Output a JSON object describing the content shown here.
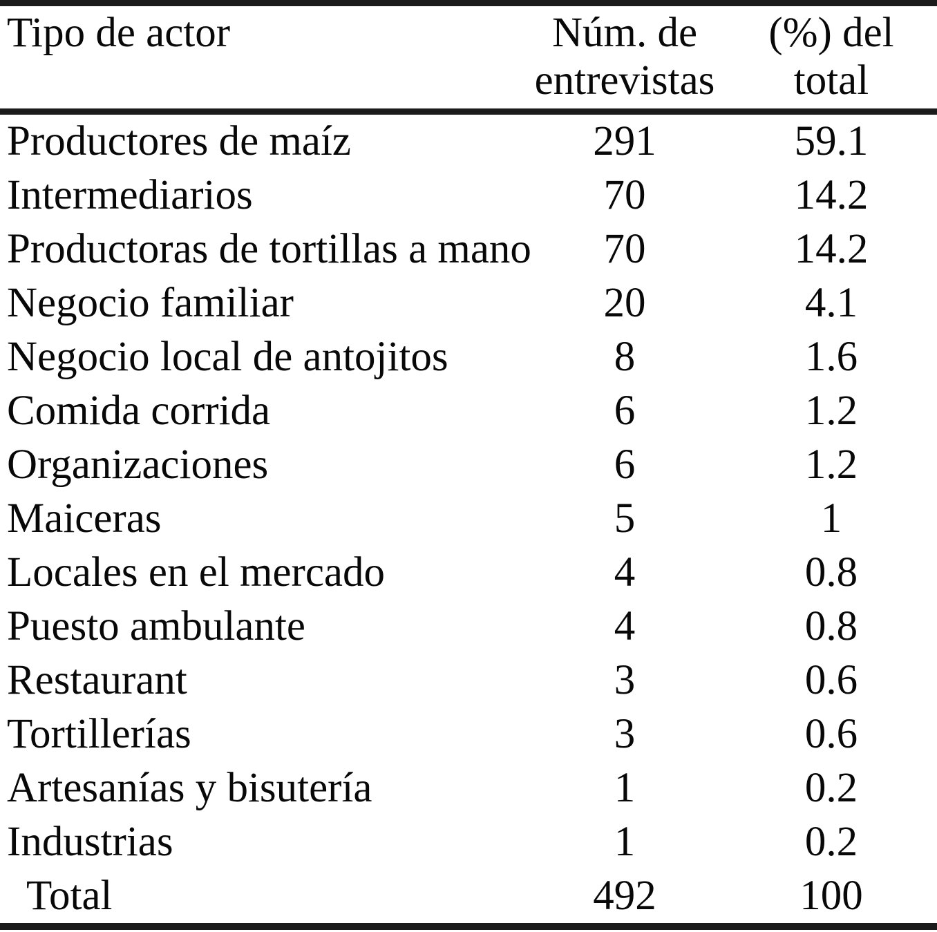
{
  "table": {
    "columns": [
      {
        "label": "Tipo de actor"
      },
      {
        "label": "Núm. de entrevistas"
      },
      {
        "label": "(%) del total"
      }
    ],
    "rows": [
      {
        "actor": "Productores de maíz",
        "interviews": "291",
        "percent": "59.1"
      },
      {
        "actor": "Intermediarios",
        "interviews": "70",
        "percent": "14.2"
      },
      {
        "actor": "Productoras de tortillas a mano",
        "interviews": "70",
        "percent": "14.2"
      },
      {
        "actor": "Negocio familiar",
        "interviews": "20",
        "percent": "4.1"
      },
      {
        "actor": "Negocio local de antojitos",
        "interviews": "8",
        "percent": "1.6"
      },
      {
        "actor": "Comida corrida",
        "interviews": "6",
        "percent": "1.2"
      },
      {
        "actor": "Organizaciones",
        "interviews": "6",
        "percent": "1.2"
      },
      {
        "actor": "Maiceras",
        "interviews": "5",
        "percent": "1"
      },
      {
        "actor": "Locales en el mercado",
        "interviews": "4",
        "percent": "0.8"
      },
      {
        "actor": "Puesto ambulante",
        "interviews": "4",
        "percent": "0.8"
      },
      {
        "actor": "Restaurant",
        "interviews": "3",
        "percent": "0.6"
      },
      {
        "actor": "Tortillerías",
        "interviews": "3",
        "percent": "0.6"
      },
      {
        "actor": "Artesanías y bisutería",
        "interviews": "1",
        "percent": "0.2"
      },
      {
        "actor": "Industrias",
        "interviews": "1",
        "percent": "0.2"
      }
    ],
    "total_row": {
      "actor": "Total",
      "interviews": "492",
      "percent": "100"
    }
  },
  "colors": {
    "text": "#080808",
    "rule": "#1b1b1b",
    "background": "#ffffff"
  }
}
